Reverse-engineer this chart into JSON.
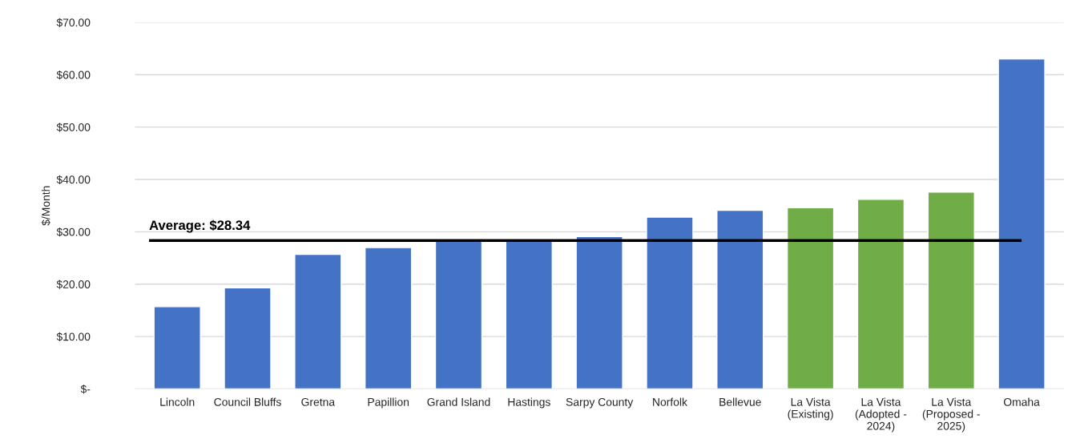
{
  "chart_data": {
    "type": "bar",
    "ylabel": "$/Month",
    "categories": [
      "Lincoln",
      "Council Bluffs",
      "Gretna",
      "Papillion",
      "Grand Island",
      "Hastings",
      "Sarpy County",
      "Norfolk",
      "Bellevue",
      "La Vista\n(Existing)",
      "La Vista\n(Adopted -\n2024)",
      "La Vista\n(Proposed -\n2025)",
      "Omaha"
    ],
    "values": [
      15.7,
      19.3,
      25.7,
      27.0,
      28.2,
      28.2,
      29.1,
      32.8,
      34.1,
      34.6,
      36.2,
      37.6,
      63.0
    ],
    "colors": [
      "#4472c4",
      "#4472c4",
      "#4472c4",
      "#4472c4",
      "#4472c4",
      "#4472c4",
      "#4472c4",
      "#4472c4",
      "#4472c4",
      "#70ad47",
      "#70ad47",
      "#70ad47",
      "#4472c4"
    ],
    "ylim": [
      0,
      70
    ],
    "yticks": [
      {
        "value": 0,
        "label": "$-"
      },
      {
        "value": 10,
        "label": "$10.00"
      },
      {
        "value": 20,
        "label": "$20.00"
      },
      {
        "value": 30,
        "label": "$30.00"
      },
      {
        "value": 40,
        "label": "$40.00"
      },
      {
        "value": 50,
        "label": "$50.00"
      },
      {
        "value": 60,
        "label": "$60.00"
      },
      {
        "value": 70,
        "label": "$70.00"
      }
    ],
    "ref_lines": [
      {
        "axis": "y",
        "value": 28.34,
        "label": "Average: $28.34",
        "color": "#000000"
      }
    ],
    "grid": "y",
    "legend": false
  }
}
